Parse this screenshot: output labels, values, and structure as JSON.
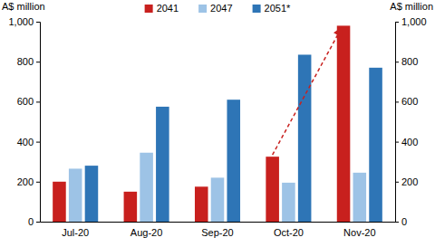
{
  "chart_data": {
    "type": "bar",
    "y_label": "A$ million",
    "y2_label": "A$ million",
    "categories": [
      "Jul-20",
      "Aug-20",
      "Sep-20",
      "Oct-20",
      "Nov-20"
    ],
    "series": [
      {
        "name": "2041",
        "color": "#c8201e",
        "values": [
          200,
          150,
          175,
          325,
          980
        ]
      },
      {
        "name": "2047",
        "color": "#9dc3e6",
        "values": [
          265,
          345,
          220,
          195,
          245
        ]
      },
      {
        "name": "2051*",
        "color": "#2e75b6",
        "values": [
          280,
          575,
          610,
          835,
          770
        ]
      }
    ],
    "ylim": [
      0,
      1000
    ],
    "yticks": [
      0,
      200,
      400,
      600,
      800,
      {
        "value": 1000,
        "label": "1,000"
      }
    ],
    "y2lim": [
      0,
      1000
    ],
    "y2ticks": [
      0,
      200,
      400,
      600,
      800,
      {
        "value": 1000,
        "label": "1,000"
      }
    ],
    "grid": false,
    "legend": "top"
  }
}
